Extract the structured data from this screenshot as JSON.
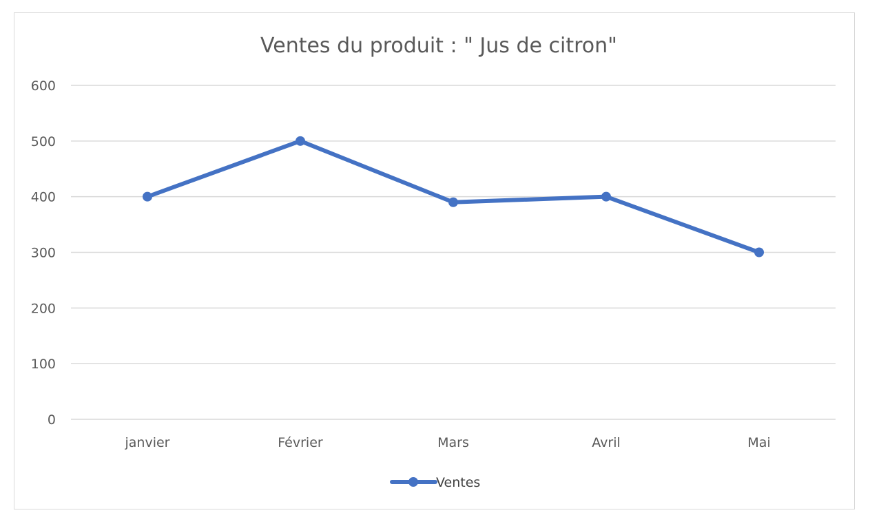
{
  "chart_data": {
    "type": "line",
    "title": "Ventes du produit : \" Jus de citron\"",
    "xlabel": "",
    "ylabel": "",
    "categories": [
      "janvier",
      "Février",
      "Mars",
      "Avril",
      "Mai"
    ],
    "series": [
      {
        "name": "Ventes",
        "values": [
          400,
          500,
          390,
          400,
          300
        ],
        "color": "#4472c4"
      }
    ],
    "ylim": [
      0,
      600
    ],
    "yticks": [
      0,
      100,
      200,
      300,
      400,
      500,
      600
    ],
    "grid": true,
    "legend_position": "bottom"
  }
}
